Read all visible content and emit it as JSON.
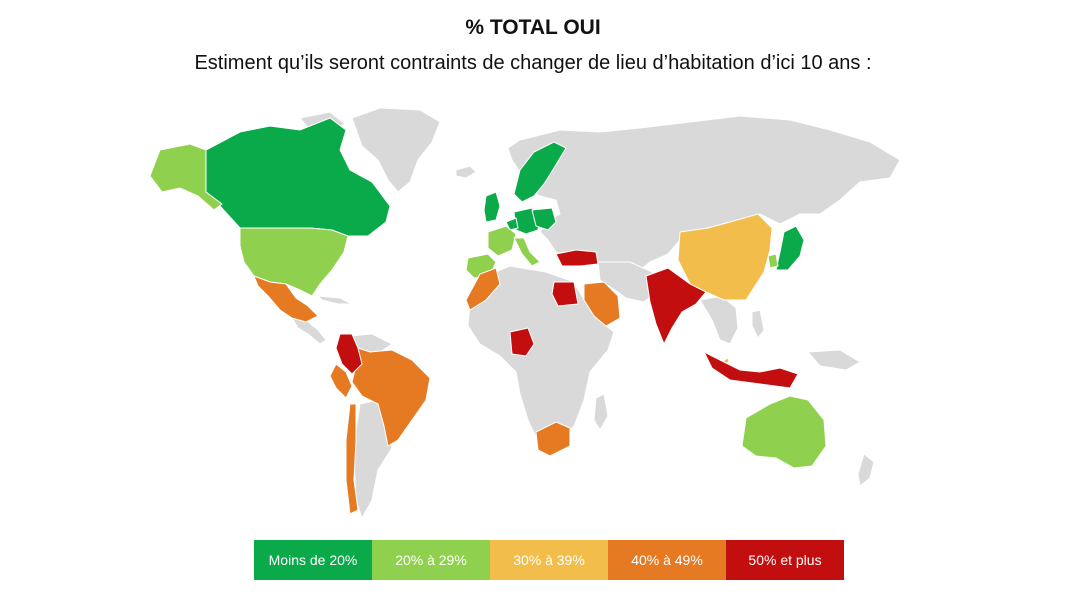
{
  "title": "% TOTAL OUI",
  "subtitle": "Estiment qu’ils seront contraints de changer de lieu d’habitation d’ici 10 ans :",
  "colors": {
    "no_data": "#d9d9d9",
    "moins_20": "#0aaa4a",
    "20_29": "#8fd14f",
    "30_39": "#f2bd4b",
    "40_49": "#e67a22",
    "50_plus": "#c20e0e"
  },
  "legend": [
    {
      "label": "Moins de 20%",
      "color": "#0aaa4a"
    },
    {
      "label": "20% à 29%",
      "color": "#8fd14f"
    },
    {
      "label": "30% à 39%",
      "color": "#f2bd4b"
    },
    {
      "label": "40% à 49%",
      "color": "#e67a22"
    },
    {
      "label": "50% et plus",
      "color": "#c20e0e"
    }
  ],
  "regions": [
    {
      "name": "canada",
      "category": "moins_20"
    },
    {
      "name": "sweden",
      "category": "moins_20"
    },
    {
      "name": "uk",
      "category": "moins_20"
    },
    {
      "name": "germany",
      "category": "moins_20"
    },
    {
      "name": "poland",
      "category": "moins_20"
    },
    {
      "name": "netherlands",
      "category": "moins_20"
    },
    {
      "name": "japan",
      "category": "moins_20"
    },
    {
      "name": "alaska",
      "category": "20_29"
    },
    {
      "name": "usa",
      "category": "20_29"
    },
    {
      "name": "france",
      "category": "20_29"
    },
    {
      "name": "spain",
      "category": "20_29"
    },
    {
      "name": "italy",
      "category": "20_29"
    },
    {
      "name": "australia",
      "category": "20_29"
    },
    {
      "name": "south-korea",
      "category": "20_29"
    },
    {
      "name": "china",
      "category": "30_39"
    },
    {
      "name": "singapore",
      "category": "30_39"
    },
    {
      "name": "mexico",
      "category": "40_49"
    },
    {
      "name": "brazil",
      "category": "40_49"
    },
    {
      "name": "chile",
      "category": "40_49"
    },
    {
      "name": "morocco",
      "category": "40_49"
    },
    {
      "name": "saudi-arabia",
      "category": "40_49"
    },
    {
      "name": "south-africa",
      "category": "40_49"
    },
    {
      "name": "peru",
      "category": "40_49"
    },
    {
      "name": "colombia",
      "category": "50_plus"
    },
    {
      "name": "turkey",
      "category": "50_plus"
    },
    {
      "name": "egypt",
      "category": "50_plus"
    },
    {
      "name": "nigeria",
      "category": "50_plus"
    },
    {
      "name": "india",
      "category": "50_plus"
    },
    {
      "name": "indonesia",
      "category": "50_plus"
    }
  ]
}
